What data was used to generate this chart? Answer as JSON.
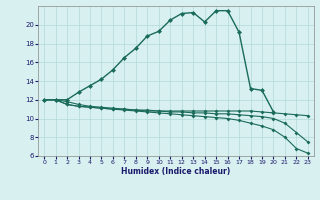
{
  "xlabel": "Humidex (Indice chaleur)",
  "bg_color": "#d8f0f0",
  "grid_color": "#b0d8d8",
  "line_color": "#1a6b5a",
  "xlim": [
    -0.5,
    23.5
  ],
  "ylim": [
    6,
    22
  ],
  "yticks": [
    6,
    8,
    10,
    12,
    14,
    16,
    18,
    20
  ],
  "xticks": [
    0,
    1,
    2,
    3,
    4,
    5,
    6,
    7,
    8,
    9,
    10,
    11,
    12,
    13,
    14,
    15,
    16,
    17,
    18,
    19,
    20,
    21,
    22,
    23
  ],
  "series_main_x": [
    0,
    1,
    2,
    3,
    4,
    5,
    6,
    7,
    8,
    9,
    10,
    11,
    12,
    13,
    14,
    15,
    16,
    17,
    18,
    19,
    20,
    21,
    22,
    23
  ],
  "series_main_y": [
    12.0,
    12.0,
    12.0,
    12.8,
    13.5,
    14.2,
    15.2,
    16.5,
    17.5,
    18.8,
    19.3,
    20.5,
    21.2,
    21.3,
    20.3,
    21.5,
    21.5,
    19.2,
    13.2,
    13.0,
    10.7,
    null,
    null,
    null
  ],
  "series_flat_x": [
    0,
    1,
    2,
    3,
    4,
    5,
    6,
    7,
    8,
    9,
    10,
    11,
    12,
    13,
    14,
    15,
    16,
    17,
    18,
    19,
    20,
    21,
    22,
    23
  ],
  "series_flat_y": [
    12.0,
    12.0,
    11.5,
    11.3,
    11.2,
    11.1,
    11.0,
    11.0,
    10.9,
    10.9,
    10.8,
    10.8,
    10.8,
    10.8,
    10.8,
    10.8,
    10.8,
    10.8,
    10.8,
    10.7,
    10.6,
    10.5,
    10.4,
    10.3
  ],
  "series_dec1_x": [
    0,
    1,
    2,
    3,
    4,
    5,
    6,
    7,
    8,
    9,
    10,
    11,
    12,
    13,
    14,
    15,
    16,
    17,
    18,
    19,
    20,
    21,
    22,
    23
  ],
  "series_dec1_y": [
    12.0,
    12.0,
    11.5,
    11.3,
    11.2,
    11.1,
    11.0,
    10.9,
    10.8,
    10.7,
    10.6,
    10.5,
    10.4,
    10.3,
    10.2,
    10.1,
    10.0,
    9.8,
    9.5,
    9.2,
    8.8,
    8.0,
    6.8,
    6.3
  ],
  "series_dec2_x": [
    0,
    1,
    2,
    3,
    4,
    5,
    6,
    7,
    8,
    9,
    10,
    11,
    12,
    13,
    14,
    15,
    16,
    17,
    18,
    19,
    20,
    21,
    22,
    23
  ],
  "series_dec2_y": [
    12.0,
    12.0,
    11.8,
    11.5,
    11.3,
    11.2,
    11.1,
    11.0,
    10.9,
    10.8,
    10.8,
    10.7,
    10.7,
    10.6,
    10.6,
    10.5,
    10.5,
    10.4,
    10.3,
    10.2,
    10.0,
    9.5,
    8.5,
    7.5
  ]
}
